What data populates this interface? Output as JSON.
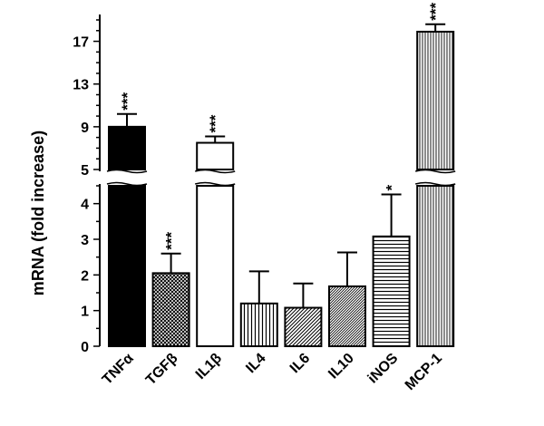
{
  "chart_data": {
    "type": "bar",
    "ylabel": "mRNA (fold increase)",
    "categories": [
      "TNFα",
      "TGFβ",
      "IL1β",
      "IL4",
      "IL6",
      "IL10",
      "iNOS",
      "MCP-1"
    ],
    "values": [
      9.0,
      2.05,
      7.5,
      1.2,
      1.08,
      1.68,
      3.08,
      17.9
    ],
    "error": [
      1.2,
      0.55,
      0.6,
      0.9,
      0.68,
      0.95,
      1.18,
      0.7
    ],
    "significance": [
      "***",
      "***",
      "***",
      "",
      "",
      "",
      "*",
      "***"
    ],
    "fills": [
      "solid-black",
      "crosshatch",
      "white",
      "vertical-lines",
      "diagonal-lines",
      "diagonal-lines-fine",
      "horizontal-lines",
      "vertical-lines-fine"
    ],
    "axis_break": true,
    "y_lower": {
      "range": [
        0,
        4.5
      ],
      "ticks": [
        "0",
        "1",
        "2",
        "3",
        "4"
      ]
    },
    "y_upper": {
      "range": [
        5,
        19
      ],
      "ticks": [
        "5",
        "9",
        "13",
        "17"
      ]
    },
    "grid": false,
    "legend": "none"
  }
}
